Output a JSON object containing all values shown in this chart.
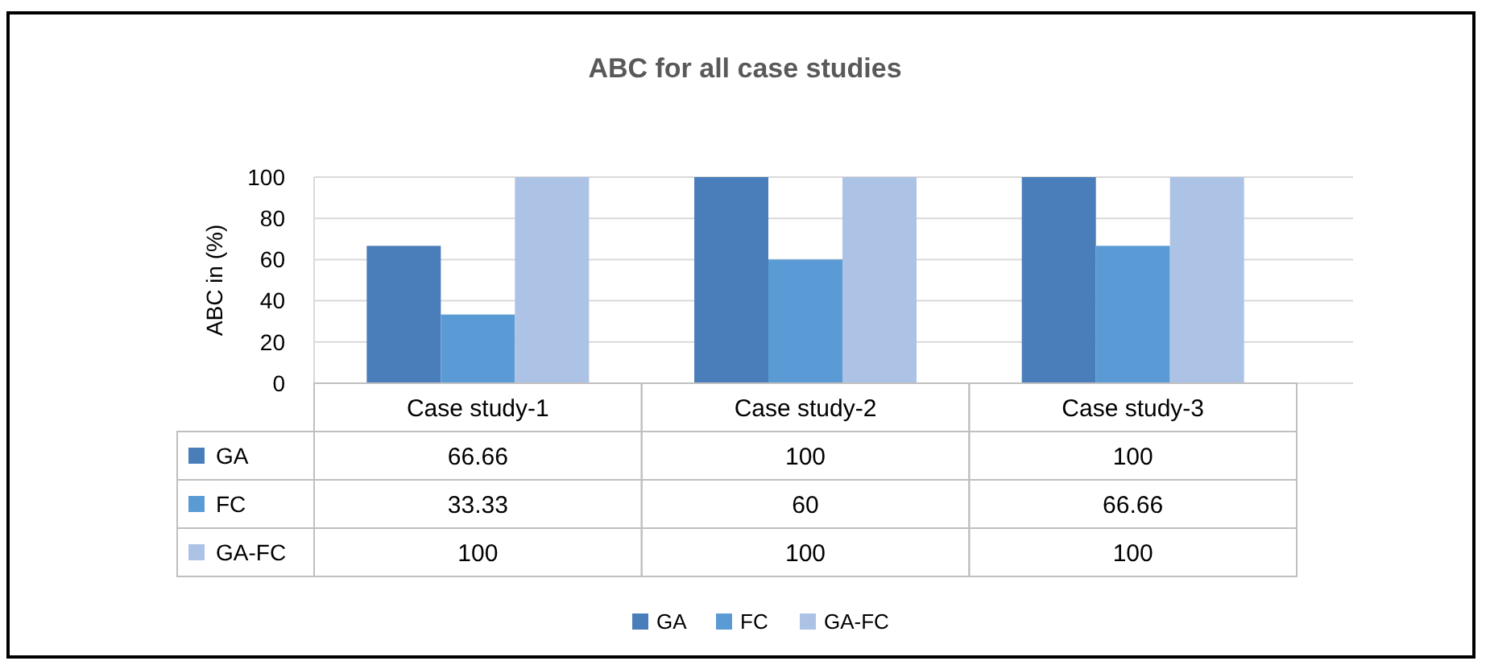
{
  "chart_data": {
    "type": "bar",
    "title": "ABC for all case studies",
    "ylabel": "ABC in (%)",
    "categories": [
      "Case study-1",
      "Case study-2",
      "Case study-3"
    ],
    "series": [
      {
        "name": "GA",
        "color": "#4a7ebb",
        "values": [
          66.66,
          100,
          100
        ]
      },
      {
        "name": "FC",
        "color": "#5b9bd5",
        "values": [
          33.33,
          60,
          66.66
        ]
      },
      {
        "name": "GA-FC",
        "color": "#adc3e5",
        "values": [
          100,
          100,
          100
        ]
      }
    ],
    "ylim": [
      0,
      100
    ],
    "yticks": [
      0,
      20,
      40,
      60,
      80,
      100
    ],
    "grid": "y",
    "legend": "bottom",
    "data_labels": true
  }
}
